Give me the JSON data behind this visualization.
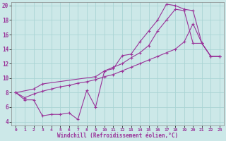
{
  "xlabel": "Windchill (Refroidissement éolien,°C)",
  "bg_color": "#cce8e8",
  "grid_color": "#aad4d4",
  "line_color": "#993399",
  "xlim": [
    -0.5,
    23.5
  ],
  "ylim": [
    3.5,
    20.5
  ],
  "yticks": [
    4,
    6,
    8,
    10,
    12,
    14,
    16,
    18,
    20
  ],
  "xticks": [
    0,
    1,
    2,
    3,
    4,
    5,
    6,
    7,
    8,
    9,
    10,
    11,
    12,
    13,
    14,
    15,
    16,
    17,
    18,
    19,
    20,
    21,
    22,
    23
  ],
  "series1_x": [
    0,
    1,
    2,
    3,
    4,
    5,
    6,
    7,
    8,
    9,
    10,
    11,
    12,
    13,
    14,
    15,
    16,
    17,
    18,
    19,
    20,
    21,
    22,
    23
  ],
  "series1_y": [
    8.0,
    7.0,
    7.0,
    4.8,
    5.0,
    5.0,
    5.2,
    4.3,
    8.3,
    6.0,
    11.0,
    11.3,
    13.1,
    13.3,
    15.0,
    16.5,
    18.0,
    20.2,
    20.0,
    19.5,
    19.3,
    14.8,
    13.0,
    13.0
  ],
  "series2_x": [
    0,
    1,
    2,
    3,
    4,
    5,
    6,
    7,
    8,
    9,
    10,
    11,
    12,
    13,
    14,
    15,
    16,
    17,
    18,
    19,
    20,
    21,
    22,
    23
  ],
  "series2_y": [
    8.0,
    7.3,
    7.8,
    8.2,
    8.5,
    8.8,
    9.0,
    9.3,
    9.5,
    9.8,
    10.2,
    10.5,
    11.0,
    11.5,
    12.0,
    12.5,
    13.0,
    13.5,
    14.0,
    15.0,
    17.5,
    14.8,
    13.0,
    13.0
  ],
  "series3_x": [
    0,
    2,
    3,
    9,
    10,
    11,
    12,
    13,
    14,
    15,
    16,
    17,
    18,
    19,
    20,
    21,
    22,
    23
  ],
  "series3_y": [
    8.0,
    8.5,
    9.2,
    10.2,
    11.0,
    11.5,
    12.0,
    12.8,
    13.5,
    14.5,
    16.5,
    18.0,
    19.5,
    19.3,
    14.8,
    14.8,
    13.0,
    13.0
  ]
}
